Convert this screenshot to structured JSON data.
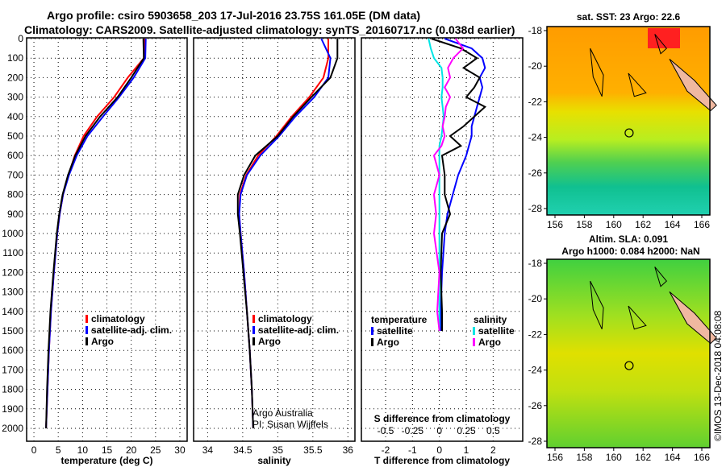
{
  "chart_data": {
    "title_line1": "Argo profile: csiro 5903658_203 17-Jul-2016 23.75S 161.05E (DM data)",
    "title_line2": "Climatology: CARS2009. Satellite-adjusted climatology: synTS_20160717.nc (0.038d earlier)",
    "depth_ticks": [
      0,
      100,
      200,
      300,
      400,
      500,
      600,
      700,
      800,
      900,
      1000,
      1100,
      1200,
      1300,
      1400,
      1500,
      1600,
      1700,
      1800,
      1900,
      2000
    ],
    "depth_range": [
      0,
      2070
    ],
    "panels": [
      {
        "type": "line",
        "xlabel": "temperature (deg C)",
        "xlim": [
          -1.5,
          31.5
        ],
        "xticks": [
          "0",
          "5",
          "10",
          "15",
          "20",
          "25",
          "30"
        ],
        "xtick_values": [
          0,
          5,
          10,
          15,
          20,
          25,
          30
        ],
        "legend": [
          "climatology",
          "satellite-adj. clim.",
          "Argo"
        ],
        "depth": [
          0,
          100,
          200,
          300,
          400,
          500,
          600,
          700,
          800,
          900,
          1000,
          1200,
          1400,
          1600,
          1800,
          2000
        ],
        "series": [
          {
            "name": "climatology",
            "color": "#ff0000",
            "values": [
              22.8,
              22.6,
              19.3,
              16.5,
              13.0,
              10.2,
              8.4,
              7.1,
              6.0,
              5.3,
              4.8,
              4.1,
              3.5,
              3.1,
              2.8,
              2.5
            ]
          },
          {
            "name": "satellite-adj. clim.",
            "color": "#0000ff",
            "values": [
              23.0,
              22.9,
              20.5,
              17.5,
              14.2,
              11.0,
              8.8,
              7.2,
              6.0,
              5.3,
              4.8,
              4.1,
              3.5,
              3.1,
              2.8,
              2.5
            ]
          },
          {
            "name": "Argo",
            "color": "#000000",
            "values": [
              22.5,
              22.6,
              20.0,
              17.2,
              13.6,
              10.6,
              8.5,
              7.0,
              5.9,
              5.2,
              4.7,
              4.0,
              3.4,
              3.0,
              2.7,
              2.5
            ]
          }
        ]
      },
      {
        "type": "line",
        "xlabel": "salinity",
        "xlim": [
          33.8,
          36.1
        ],
        "xticks": [
          "34",
          "34.5",
          "35",
          "35.5",
          "36"
        ],
        "xtick_values": [
          34,
          34.5,
          35,
          35.5,
          36
        ],
        "legend": [
          "climatology",
          "satellite-adj. clim.",
          "Argo"
        ],
        "annotation": [
          "Argo Australia",
          "PI: Susan Wijffels"
        ],
        "depth": [
          0,
          100,
          200,
          300,
          400,
          500,
          600,
          700,
          800,
          900,
          1000,
          1200,
          1400,
          1600,
          1800,
          2000
        ],
        "series": [
          {
            "name": "climatology",
            "color": "#ff0000",
            "values": [
              35.72,
              35.72,
              35.65,
              35.45,
              35.2,
              34.98,
              34.72,
              34.55,
              34.46,
              34.45,
              34.47,
              34.52,
              34.56,
              34.6,
              34.63,
              34.65
            ]
          },
          {
            "name": "satellite-adj. clim.",
            "color": "#0000ff",
            "values": [
              35.62,
              35.75,
              35.72,
              35.52,
              35.25,
              35.02,
              34.75,
              34.56,
              34.47,
              34.45,
              34.47,
              34.52,
              34.56,
              34.6,
              34.63,
              34.65
            ]
          },
          {
            "name": "Argo",
            "color": "#000000",
            "values": [
              35.85,
              35.85,
              35.75,
              35.48,
              35.22,
              35.0,
              34.68,
              34.52,
              34.43,
              34.43,
              34.46,
              34.51,
              34.56,
              34.6,
              34.63,
              34.65
            ]
          }
        ]
      },
      {
        "type": "line",
        "xlabel": "T difference from climatology",
        "xlim": [
          -2.9,
          3.1
        ],
        "xticks": [
          "-2",
          "-1",
          "0",
          "1",
          "2"
        ],
        "xtick_values": [
          -2,
          -1,
          0,
          1,
          2
        ],
        "secondary_label": "S difference from climatology",
        "secondary_ticks": [
          "-0.5",
          "-0.25",
          "0",
          "0.25",
          "0.5"
        ],
        "legend_temperature": {
          "title": "temperature",
          "items": [
            "satellite",
            "Argo"
          ]
        },
        "legend_salinity": {
          "title": "salinity",
          "items": [
            "satellite",
            "Argo"
          ]
        },
        "depth": [
          0,
          50,
          100,
          150,
          200,
          250,
          300,
          350,
          400,
          450,
          500,
          550,
          600,
          700,
          800,
          900,
          1000,
          1200,
          1400,
          1500
        ],
        "series": [
          {
            "name": "temperature satellite",
            "color": "#0000ff",
            "values": [
              0.2,
              1.2,
              1.6,
              1.7,
              1.5,
              1.6,
              1.5,
              1.4,
              1.3,
              1.2,
              1.2,
              1.1,
              1.0,
              0.7,
              0.5,
              0.3,
              0.2,
              0.1,
              0.05,
              0.05
            ]
          },
          {
            "name": "temperature Argo",
            "color": "#000000",
            "values": [
              -0.3,
              0.8,
              1.4,
              0.9,
              1.5,
              1.3,
              1.0,
              1.7,
              1.3,
              0.9,
              0.4,
              0.8,
              0.1,
              0.2,
              0.2,
              0.4,
              0.1,
              0.05,
              0.1,
              0.1
            ]
          },
          {
            "name": "salinity satellite",
            "color": "#00e5e5",
            "values": [
              -0.1,
              -0.08,
              -0.05,
              0.02,
              0.03,
              0.03,
              0.02,
              0.03,
              0.04,
              0.03,
              0.02,
              0.0,
              0.0,
              0.0,
              0.0,
              0.0,
              0.0,
              0.0,
              0.0,
              0.0
            ]
          },
          {
            "name": "salinity Argo",
            "color": "#ff00ff",
            "values": [
              0.15,
              0.22,
              0.13,
              0.08,
              0.1,
              0.05,
              0.1,
              0.06,
              0.05,
              0.03,
              0.05,
              0.02,
              -0.05,
              0.0,
              -0.05,
              -0.03,
              -0.05,
              0.0,
              -0.02,
              0.0
            ]
          }
        ]
      }
    ],
    "maps": [
      {
        "title": "sat. SST: 23 Argo: 22.6",
        "lon_ticks": [
          "156",
          "158",
          "160",
          "162",
          "164",
          "166"
        ],
        "lat_ticks": [
          "-18",
          "-20",
          "-22",
          "-24",
          "-26",
          "-28"
        ],
        "float_lon": 161.05,
        "float_lat": -23.75
      },
      {
        "title": "Altim. SLA: 0.091",
        "subtitle": "Argo h1000: 0.084 h2000: NaN",
        "lon_ticks": [
          "156",
          "158",
          "160",
          "162",
          "164",
          "166"
        ],
        "lat_ticks": [
          "-18",
          "-20",
          "-22",
          "-24",
          "-26",
          "-28"
        ],
        "float_lon": 161.05,
        "float_lat": -23.75
      }
    ],
    "credit": "©IMOS 13-Dec-2018 04:08:08"
  }
}
